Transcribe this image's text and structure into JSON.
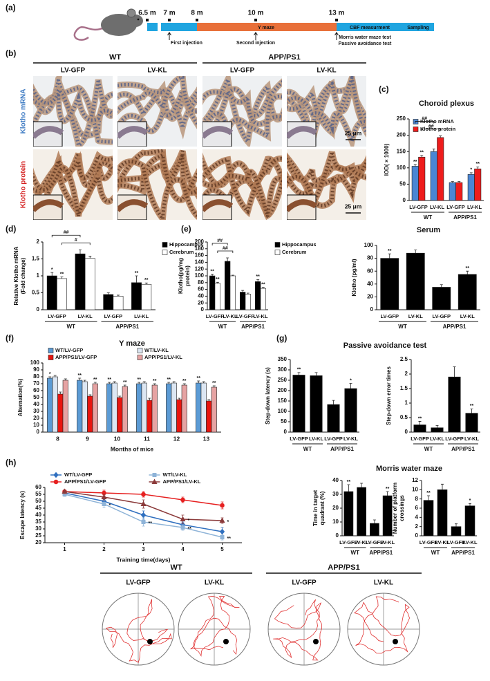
{
  "panel_labels": [
    "(a)",
    "(b)",
    "(c)",
    "(d)",
    "(e)",
    "(f)",
    "(g)",
    "(h)"
  ],
  "timeline": {
    "ticks": [
      "6.5 m",
      "7 m",
      "8 m",
      "10 m",
      "13 m"
    ],
    "stage": "Y maze",
    "events": [
      "First injection",
      "Second injection",
      "Morris water maze test",
      "Passive avoidance test"
    ],
    "tail": [
      "CBF measurment",
      "Sampling"
    ]
  },
  "histology": {
    "groups": [
      "WT",
      "APP/PS1"
    ],
    "conditions": [
      "LV-GFP",
      "LV-KL",
      "LV-GFP",
      "LV-KL"
    ],
    "rows": [
      "Klotho mRNA",
      "Klotho protein"
    ],
    "row_colors": [
      "#3a78c2",
      "#d42020"
    ],
    "scale_bars": [
      "25 μm",
      "25 μm"
    ]
  },
  "sections": {
    "g": "Passive avoidance test",
    "h": "Morris water maze"
  },
  "chart_data": [
    {
      "type": "bar",
      "title": "Choroid plexus",
      "ylabel": [
        "IOD( × 1000)"
      ],
      "categories": [
        "LV-GFP",
        "LV-KL",
        "LV-GFP",
        "LV-KL"
      ],
      "groups": [
        "WT",
        "APP/PS1"
      ],
      "series": [
        {
          "name": "Klotho mRNA",
          "color": "#4a86d4",
          "values": [
            105,
            150,
            55,
            80
          ],
          "errors": [
            5,
            8,
            3,
            5
          ],
          "stars": [
            "**",
            null,
            null,
            "*"
          ]
        },
        {
          "name": "Klotho protein",
          "color": "#ee1c1c",
          "values": [
            133,
            193,
            55,
            97
          ],
          "errors": [
            5,
            5,
            3,
            6
          ],
          "stars": [
            "**",
            null,
            null,
            "**"
          ]
        }
      ],
      "brackets": [
        "##",
        "##"
      ],
      "ylim": [
        0,
        250
      ],
      "yticks": [
        0,
        50,
        100,
        150,
        200,
        250
      ],
      "legend": "top-left"
    },
    {
      "type": "bar",
      "ylabel": [
        "Relative Klotho mRNA",
        "(Fold change)"
      ],
      "categories": [
        "LV-GFP",
        "LV-KL",
        "LV-GFP",
        "LV-KL"
      ],
      "groups": [
        "WT",
        "APP/PS1"
      ],
      "series": [
        {
          "name": "Hippocampus",
          "color": "#000000",
          "values": [
            1.0,
            1.65,
            0.45,
            0.8
          ],
          "errors": [
            0.1,
            0.12,
            0.05,
            0.2
          ],
          "stars": [
            "*",
            null,
            null,
            "**"
          ]
        },
        {
          "name": "Cerebrum",
          "color": "#ffffff",
          "values": [
            0.92,
            1.52,
            0.4,
            0.75
          ],
          "errors": [
            0.05,
            0.06,
            0.03,
            0.04
          ],
          "stars": [
            "**",
            null,
            null,
            "**"
          ]
        }
      ],
      "brackets": [
        "##",
        "#"
      ],
      "ylim": [
        0,
        2
      ],
      "yticks": [
        0,
        0.5,
        1,
        1.5,
        2
      ],
      "legend": "right"
    },
    {
      "type": "bar",
      "ylabel": [
        "Klotho(pg/mg",
        "protein)"
      ],
      "categories": [
        "LV-GFP",
        "LV-KL",
        "LV-GFP",
        "LV-KL"
      ],
      "groups": [
        "WT",
        "APP/PS1"
      ],
      "series": [
        {
          "name": "Hippocampus",
          "color": "#000000",
          "values": [
            100,
            143,
            52,
            83
          ],
          "errors": [
            5,
            10,
            5,
            6
          ],
          "stars": [
            "**",
            null,
            null,
            "**"
          ]
        },
        {
          "name": "Cerebrum",
          "color": "#ffffff",
          "values": [
            78,
            100,
            46,
            63
          ],
          "errors": [
            3,
            2,
            3,
            3
          ],
          "stars": [
            "**",
            null,
            null,
            "**"
          ]
        }
      ],
      "brackets": [
        "##",
        "##"
      ],
      "ylim": [
        0,
        200
      ],
      "yticks": [
        0,
        20,
        40,
        60,
        80,
        100,
        120,
        140,
        160,
        180,
        200
      ],
      "legend": "right"
    },
    {
      "type": "bar",
      "title": "Serum",
      "ylabel": [
        "Klotho (pg/ml)"
      ],
      "categories": [
        "LV-GFP",
        "LV-KL",
        "LV-GFP",
        "LV-KL"
      ],
      "groups": [
        "WT",
        "APP/PS1"
      ],
      "color": "#000000",
      "values": [
        80,
        88,
        35,
        55
      ],
      "errors": [
        7,
        5,
        4,
        5
      ],
      "stars": [
        "**",
        null,
        null,
        "**"
      ],
      "ylim": [
        0,
        100
      ],
      "yticks": [
        0,
        20,
        40,
        60,
        80,
        100
      ]
    },
    {
      "type": "bar",
      "title": "Y maze",
      "xlabel": "Months of mice",
      "ylabel": [
        "Alternation(%)"
      ],
      "categories": [
        "8",
        "9",
        "10",
        "11",
        "12",
        "13"
      ],
      "series": [
        {
          "name": "WT/LV-GFP",
          "color": "#5b9bd5",
          "values": [
            78,
            75,
            70,
            70,
            70,
            71
          ],
          "errors": [
            2,
            3,
            2,
            2,
            2,
            3
          ],
          "stars": [
            "*",
            "**",
            "**",
            "**",
            "**",
            "**"
          ]
        },
        {
          "name": "WT/LV-KL",
          "color": "#dce6f2",
          "values": [
            80,
            73,
            71,
            71,
            71,
            71
          ],
          "errors": [
            2,
            2,
            2,
            2,
            2,
            2
          ],
          "stars": [
            null,
            null,
            null,
            null,
            null,
            null
          ]
        },
        {
          "name": "APP/PS1/LV-GFP",
          "color": "#e8150f",
          "values": [
            55,
            52,
            50,
            46,
            47,
            45
          ],
          "errors": [
            3,
            2,
            2,
            3,
            2,
            2
          ],
          "stars": [
            null,
            null,
            null,
            null,
            null,
            null
          ]
        },
        {
          "name": "APP/PS1/LV-KL",
          "color": "#e6a3a3",
          "values": [
            75,
            70,
            66,
            68,
            68,
            65
          ],
          "errors": [
            2,
            2,
            2,
            2,
            2,
            2
          ],
          "stars": [
            null,
            "**",
            "**",
            "**",
            "**",
            "**"
          ]
        }
      ],
      "ylim": [
        0,
        100
      ],
      "yticks": [
        0,
        10,
        20,
        30,
        40,
        50,
        60,
        70,
        80,
        90,
        100
      ],
      "legend": "top"
    },
    {
      "type": "bar",
      "ylabel": [
        "Step-down latency (s)"
      ],
      "categories": [
        "LV-GFP",
        "LV-KL",
        "LV-GFP",
        "LV-KL"
      ],
      "groups": [
        "WT",
        "APP/PS1"
      ],
      "color": "#000000",
      "values": [
        275,
        272,
        133,
        210
      ],
      "errors": [
        12,
        15,
        20,
        25
      ],
      "stars": [
        "**",
        null,
        null,
        "*"
      ],
      "ylim": [
        0,
        350
      ],
      "yticks": [
        0,
        50,
        100,
        150,
        200,
        250,
        300,
        350
      ]
    },
    {
      "type": "bar",
      "ylabel": [
        "Step-down error times"
      ],
      "categories": [
        "LV-GFP",
        "LV-KL",
        "LV-GFP",
        "LV-KL"
      ],
      "groups": [
        "WT",
        "APP/PS1"
      ],
      "color": "#000000",
      "values": [
        0.25,
        0.15,
        1.9,
        0.65
      ],
      "errors": [
        0.12,
        0.08,
        0.35,
        0.15
      ],
      "stars": [
        "**",
        null,
        null,
        "**"
      ],
      "ylim": [
        0,
        2.5
      ],
      "yticks": [
        0,
        0.5,
        1,
        1.5,
        2,
        2.5
      ]
    },
    {
      "type": "line",
      "xlabel": "Training time(days)",
      "ylabel": [
        "Escape latency (s)"
      ],
      "x": [
        1,
        2,
        3,
        4,
        5
      ],
      "xlim": [
        0.5,
        5.5
      ],
      "xticks": [
        1,
        2,
        3,
        4,
        5
      ],
      "series": [
        {
          "name": "WT/LV-GFP",
          "color": "#2f6fbf",
          "marker": "diamond",
          "values": [
            56,
            50,
            40,
            33,
            28
          ],
          "errors": [
            1.5,
            2,
            3,
            2,
            3
          ],
          "stars": [
            null,
            null,
            null,
            null,
            null
          ]
        },
        {
          "name": "WT/LV-KL",
          "color": "#8fb4d8",
          "marker": "square",
          "values": [
            55,
            48,
            35,
            31,
            24
          ],
          "errors": [
            1.5,
            2.5,
            3,
            2,
            2
          ],
          "stars": [
            null,
            "*",
            "**",
            "**",
            "**"
          ]
        },
        {
          "name": "APP/PS1/LV-GFP",
          "color": "#e62020",
          "marker": "circle",
          "values": [
            57,
            56,
            55,
            51,
            47
          ],
          "errors": [
            1,
            2,
            2,
            2,
            2.5
          ],
          "stars": [
            null,
            null,
            null,
            null,
            null
          ]
        },
        {
          "name": "APP/PS1/LV-KL",
          "color": "#8b3a3a",
          "marker": "triangle",
          "values": [
            57,
            53,
            48,
            37,
            36
          ],
          "errors": [
            1,
            2,
            3,
            3,
            2
          ],
          "stars": [
            null,
            null,
            null,
            "*",
            "*"
          ]
        }
      ],
      "ylim": [
        20,
        60
      ],
      "yticks": [
        20,
        25,
        30,
        35,
        40,
        45,
        50,
        55,
        60
      ],
      "legend": "top"
    },
    {
      "type": "bar",
      "ylabel": [
        "Time in target",
        "quadrant (%)"
      ],
      "categories": [
        "LV-GFP",
        "LV-KL",
        "LV-GFP",
        "LV-KL"
      ],
      "groups": [
        "WT",
        "APP/PS1"
      ],
      "color": "#000000",
      "values": [
        32,
        35,
        9,
        29
      ],
      "errors": [
        5,
        3,
        2.5,
        3
      ],
      "stars": [
        "**",
        null,
        null,
        "**"
      ],
      "ylim": [
        0,
        40
      ],
      "yticks": [
        0,
        10,
        20,
        30,
        40
      ]
    },
    {
      "type": "bar",
      "ylabel": [
        "Number of platform",
        "crossings"
      ],
      "categories": [
        "LV-GFP",
        "LV-KL",
        "LV-GFP",
        "LV-KL"
      ],
      "groups": [
        "WT",
        "APP/PS1"
      ],
      "color": "#000000",
      "values": [
        7.7,
        10,
        2,
        6.5
      ],
      "errors": [
        1,
        1.2,
        0.6,
        0.5
      ],
      "stars": [
        "**",
        null,
        null,
        "*"
      ],
      "ylim": [
        0,
        12
      ],
      "yticks": [
        0,
        2,
        4,
        6,
        8,
        10,
        12
      ]
    }
  ],
  "swim_paths": {
    "groups": [
      "WT",
      "APP/PS1"
    ],
    "conditions": [
      "LV-GFP",
      "LV-KL",
      "LV-GFP",
      "LV-KL"
    ]
  }
}
